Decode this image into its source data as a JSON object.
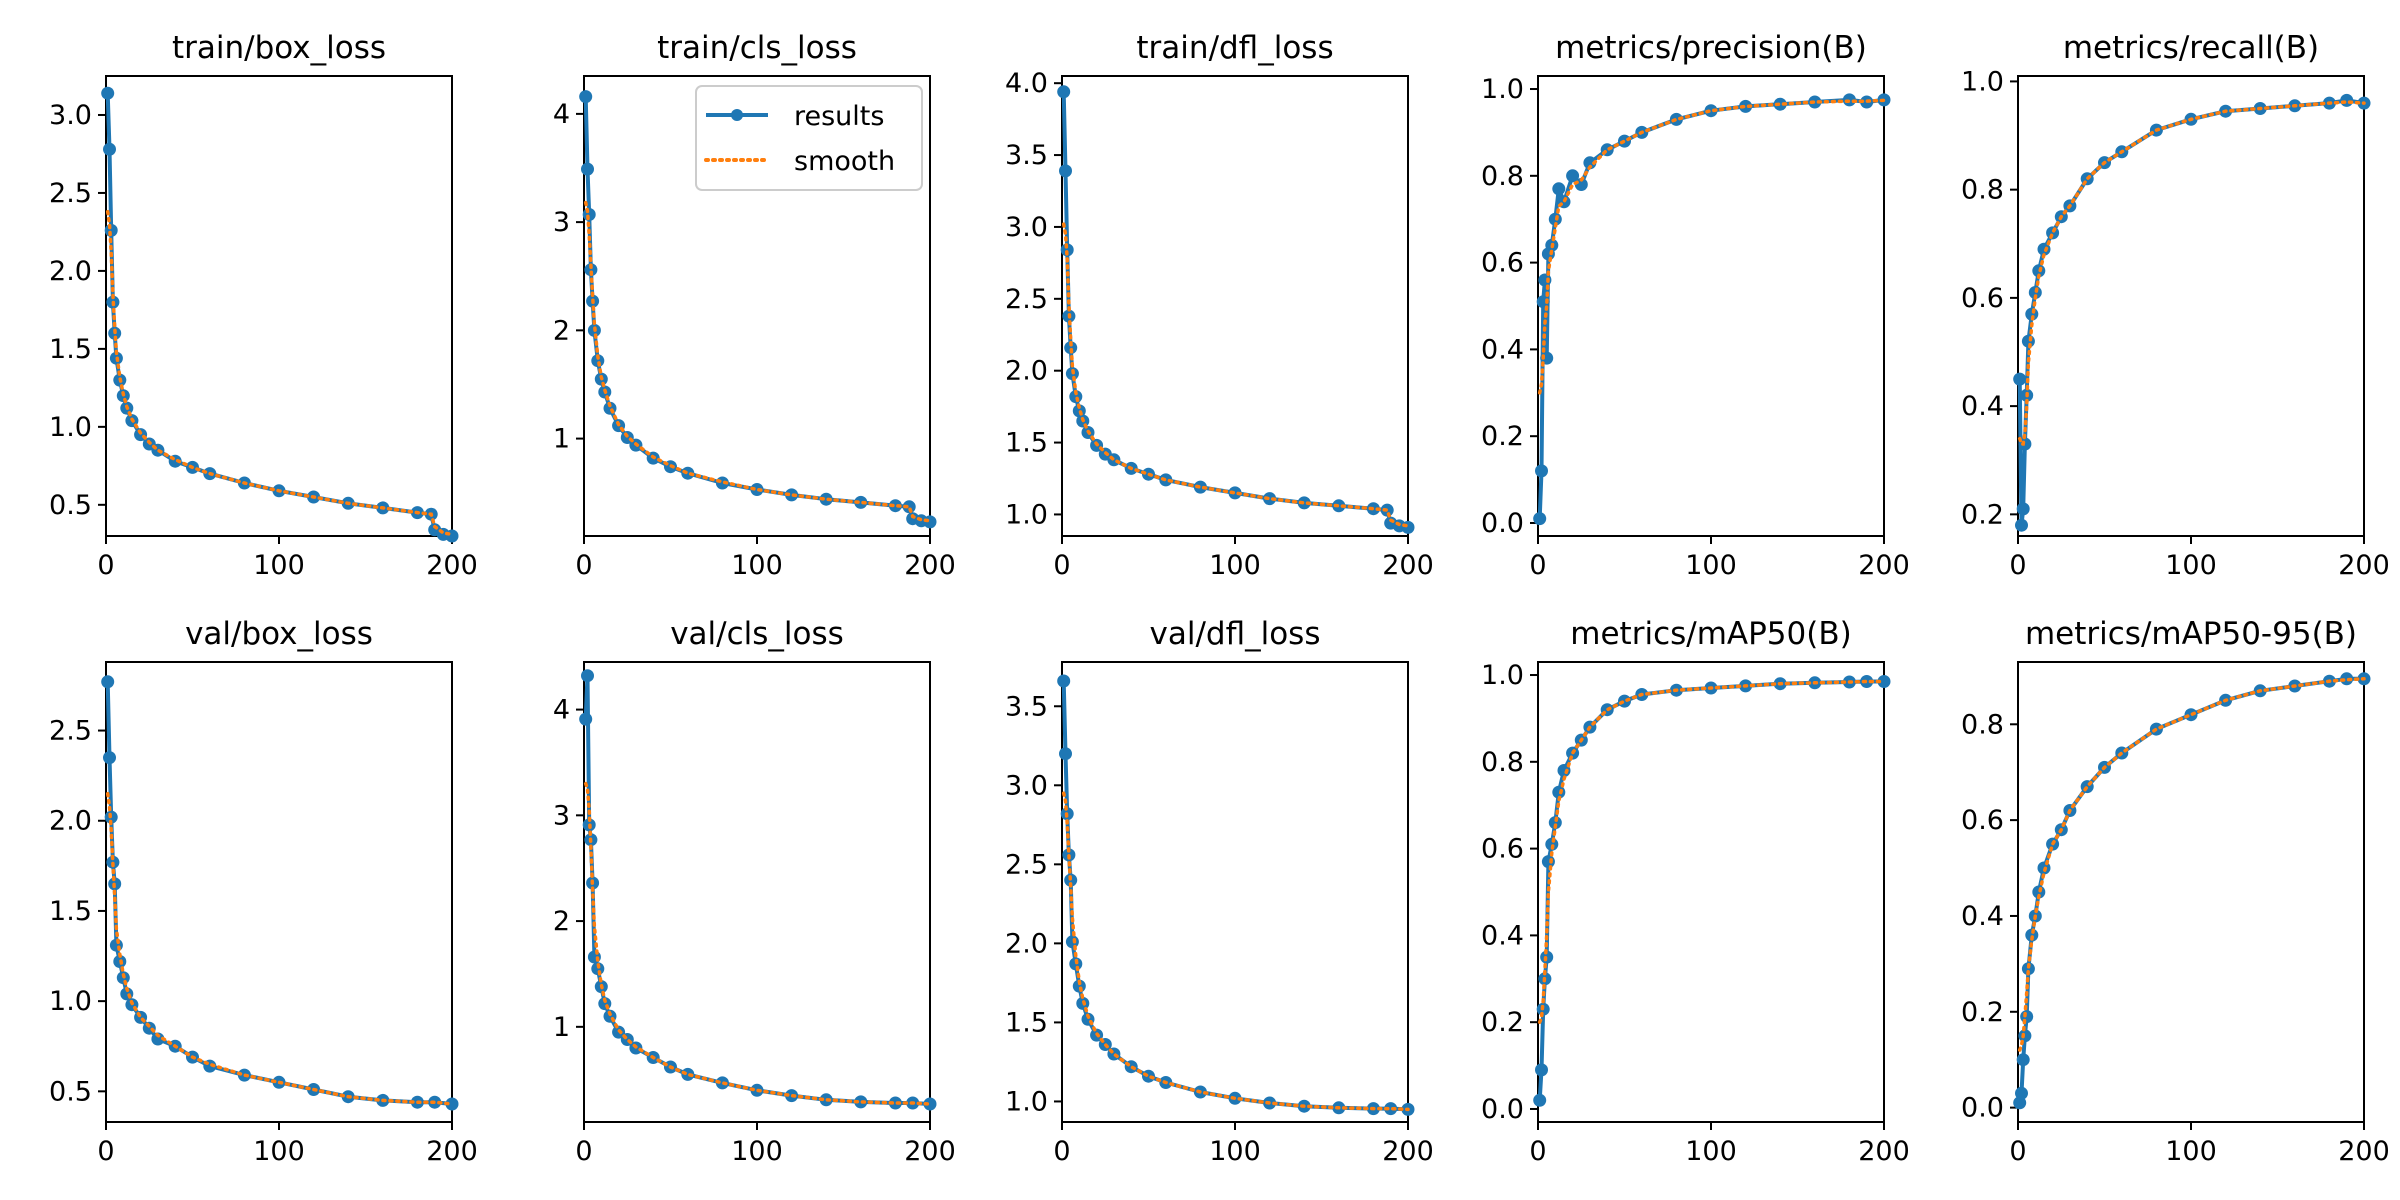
{
  "colors": {
    "results": "#1f77b4",
    "smooth": "#ff7f0e"
  },
  "legend": {
    "results_label": "results",
    "smooth_label": "smooth",
    "location": "upper right of train/cls_loss panel"
  },
  "chart_data": [
    {
      "type": "line",
      "title": "train/box_loss",
      "xlim": [
        0,
        200
      ],
      "ylim": [
        0.3,
        3.25
      ],
      "xticks": [
        0,
        100,
        200
      ],
      "yticks": [
        0.5,
        1.0,
        1.5,
        2.0,
        2.5,
        3.0
      ],
      "x": [
        1,
        2,
        3,
        4,
        5,
        6,
        8,
        10,
        12,
        15,
        20,
        25,
        30,
        40,
        50,
        60,
        80,
        100,
        120,
        140,
        160,
        180,
        188,
        190,
        195,
        200
      ],
      "results": [
        3.14,
        2.78,
        2.26,
        1.8,
        1.6,
        1.44,
        1.3,
        1.2,
        1.12,
        1.04,
        0.95,
        0.89,
        0.85,
        0.78,
        0.74,
        0.7,
        0.64,
        0.59,
        0.55,
        0.51,
        0.48,
        0.45,
        0.44,
        0.34,
        0.31,
        0.3
      ],
      "smooth": [
        2.38,
        2.3,
        2.12,
        1.85,
        1.64,
        1.48,
        1.32,
        1.21,
        1.13,
        1.05,
        0.96,
        0.9,
        0.85,
        0.79,
        0.74,
        0.7,
        0.64,
        0.59,
        0.55,
        0.51,
        0.48,
        0.45,
        0.44,
        0.36,
        0.32,
        0.31
      ]
    },
    {
      "type": "line",
      "title": "train/cls_loss",
      "xlim": [
        0,
        200
      ],
      "ylim": [
        0.1,
        4.35
      ],
      "xticks": [
        0,
        100,
        200
      ],
      "yticks": [
        1,
        2,
        3,
        4
      ],
      "x": [
        1,
        2,
        3,
        4,
        5,
        6,
        8,
        10,
        12,
        15,
        20,
        25,
        30,
        40,
        50,
        60,
        80,
        100,
        120,
        140,
        160,
        180,
        188,
        190,
        195,
        200
      ],
      "results": [
        4.16,
        3.49,
        3.07,
        2.56,
        2.27,
        2.0,
        1.72,
        1.55,
        1.43,
        1.28,
        1.12,
        1.01,
        0.94,
        0.82,
        0.74,
        0.68,
        0.59,
        0.53,
        0.48,
        0.44,
        0.41,
        0.38,
        0.37,
        0.26,
        0.24,
        0.23
      ],
      "smooth": [
        3.18,
        3.1,
        2.88,
        2.6,
        2.32,
        2.06,
        1.76,
        1.57,
        1.45,
        1.3,
        1.13,
        1.02,
        0.95,
        0.83,
        0.75,
        0.68,
        0.6,
        0.53,
        0.48,
        0.44,
        0.41,
        0.38,
        0.37,
        0.28,
        0.25,
        0.24
      ]
    },
    {
      "type": "line",
      "title": "train/dfl_loss",
      "xlim": [
        0,
        200
      ],
      "ylim": [
        0.85,
        4.05
      ],
      "xticks": [
        0,
        100,
        200
      ],
      "yticks": [
        1.0,
        1.5,
        2.0,
        2.5,
        3.0,
        3.5,
        4.0
      ],
      "x": [
        1,
        2,
        3,
        4,
        5,
        6,
        8,
        10,
        12,
        15,
        20,
        25,
        30,
        40,
        50,
        60,
        80,
        100,
        120,
        140,
        160,
        180,
        188,
        190,
        195,
        200
      ],
      "results": [
        3.94,
        3.39,
        2.84,
        2.38,
        2.16,
        1.98,
        1.82,
        1.72,
        1.65,
        1.57,
        1.48,
        1.42,
        1.38,
        1.32,
        1.28,
        1.24,
        1.19,
        1.15,
        1.11,
        1.08,
        1.06,
        1.04,
        1.03,
        0.94,
        0.92,
        0.91
      ],
      "smooth": [
        3.02,
        2.95,
        2.78,
        2.46,
        2.22,
        2.03,
        1.85,
        1.74,
        1.66,
        1.58,
        1.49,
        1.43,
        1.38,
        1.32,
        1.28,
        1.24,
        1.19,
        1.15,
        1.11,
        1.08,
        1.06,
        1.04,
        1.03,
        0.96,
        0.93,
        0.92
      ]
    },
    {
      "type": "line",
      "title": "metrics/precision(B)",
      "xlim": [
        0,
        200
      ],
      "ylim": [
        -0.03,
        1.03
      ],
      "xticks": [
        0,
        100,
        200
      ],
      "yticks": [
        0.0,
        0.2,
        0.4,
        0.6,
        0.8,
        1.0
      ],
      "x": [
        1,
        2,
        3,
        4,
        5,
        6,
        8,
        10,
        12,
        15,
        20,
        25,
        30,
        40,
        50,
        60,
        80,
        100,
        120,
        140,
        160,
        180,
        190,
        200
      ],
      "results": [
        0.01,
        0.12,
        0.51,
        0.56,
        0.38,
        0.62,
        0.64,
        0.7,
        0.77,
        0.74,
        0.8,
        0.78,
        0.83,
        0.86,
        0.88,
        0.9,
        0.93,
        0.95,
        0.96,
        0.965,
        0.97,
        0.975,
        0.97,
        0.975
      ],
      "smooth": [
        0.3,
        0.32,
        0.38,
        0.46,
        0.5,
        0.58,
        0.63,
        0.68,
        0.73,
        0.74,
        0.78,
        0.79,
        0.82,
        0.86,
        0.88,
        0.9,
        0.93,
        0.95,
        0.96,
        0.965,
        0.97,
        0.972,
        0.972,
        0.974
      ]
    },
    {
      "type": "line",
      "title": "metrics/recall(B)",
      "xlim": [
        0,
        200
      ],
      "ylim": [
        0.16,
        1.01
      ],
      "xticks": [
        0,
        100,
        200
      ],
      "yticks": [
        0.2,
        0.4,
        0.6,
        0.8,
        1.0
      ],
      "x": [
        1,
        2,
        3,
        4,
        5,
        6,
        8,
        10,
        12,
        15,
        20,
        25,
        30,
        40,
        50,
        60,
        80,
        100,
        120,
        140,
        160,
        180,
        190,
        200
      ],
      "results": [
        0.45,
        0.18,
        0.21,
        0.33,
        0.42,
        0.52,
        0.57,
        0.61,
        0.65,
        0.69,
        0.72,
        0.75,
        0.77,
        0.82,
        0.85,
        0.87,
        0.91,
        0.93,
        0.945,
        0.95,
        0.955,
        0.96,
        0.965,
        0.96
      ],
      "smooth": [
        0.34,
        0.33,
        0.33,
        0.35,
        0.4,
        0.48,
        0.55,
        0.6,
        0.64,
        0.68,
        0.72,
        0.75,
        0.77,
        0.82,
        0.85,
        0.87,
        0.91,
        0.93,
        0.945,
        0.95,
        0.955,
        0.96,
        0.962,
        0.96
      ]
    },
    {
      "type": "line",
      "title": "val/box_loss",
      "xlim": [
        0,
        200
      ],
      "ylim": [
        0.33,
        2.88
      ],
      "xticks": [
        0,
        100,
        200
      ],
      "yticks": [
        0.5,
        1.0,
        1.5,
        2.0,
        2.5
      ],
      "x": [
        1,
        2,
        3,
        4,
        5,
        6,
        8,
        10,
        12,
        15,
        20,
        25,
        30,
        40,
        50,
        60,
        80,
        100,
        120,
        140,
        160,
        180,
        190,
        200
      ],
      "results": [
        2.77,
        2.35,
        2.02,
        1.77,
        1.65,
        1.31,
        1.22,
        1.13,
        1.04,
        0.98,
        0.91,
        0.85,
        0.79,
        0.75,
        0.69,
        0.64,
        0.59,
        0.55,
        0.51,
        0.47,
        0.45,
        0.44,
        0.44,
        0.43
      ],
      "smooth": [
        2.15,
        2.08,
        1.95,
        1.76,
        1.58,
        1.4,
        1.26,
        1.15,
        1.07,
        0.99,
        0.91,
        0.86,
        0.81,
        0.75,
        0.69,
        0.65,
        0.59,
        0.55,
        0.51,
        0.47,
        0.45,
        0.44,
        0.44,
        0.43
      ]
    },
    {
      "type": "line",
      "title": "val/cls_loss",
      "xlim": [
        0,
        200
      ],
      "ylim": [
        0.1,
        4.45
      ],
      "xticks": [
        0,
        100,
        200
      ],
      "yticks": [
        1,
        2,
        3,
        4
      ],
      "x": [
        1,
        2,
        3,
        4,
        5,
        6,
        8,
        10,
        12,
        15,
        20,
        25,
        30,
        40,
        50,
        60,
        80,
        100,
        120,
        140,
        160,
        180,
        190,
        200
      ],
      "results": [
        3.91,
        4.32,
        2.91,
        2.77,
        2.36,
        1.66,
        1.55,
        1.38,
        1.22,
        1.1,
        0.95,
        0.88,
        0.8,
        0.71,
        0.62,
        0.55,
        0.47,
        0.4,
        0.35,
        0.31,
        0.29,
        0.28,
        0.28,
        0.27
      ],
      "smooth": [
        3.3,
        3.25,
        3.05,
        2.7,
        2.3,
        1.95,
        1.62,
        1.4,
        1.25,
        1.12,
        0.97,
        0.88,
        0.81,
        0.71,
        0.62,
        0.55,
        0.47,
        0.4,
        0.35,
        0.31,
        0.29,
        0.28,
        0.28,
        0.27
      ]
    },
    {
      "type": "line",
      "title": "val/dfl_loss",
      "xlim": [
        0,
        200
      ],
      "ylim": [
        0.87,
        3.78
      ],
      "xticks": [
        0,
        100,
        200
      ],
      "yticks": [
        1.0,
        1.5,
        2.0,
        2.5,
        3.0,
        3.5
      ],
      "x": [
        1,
        2,
        3,
        4,
        5,
        6,
        8,
        10,
        12,
        15,
        20,
        25,
        30,
        40,
        50,
        60,
        80,
        100,
        120,
        140,
        160,
        180,
        190,
        200
      ],
      "results": [
        3.66,
        3.2,
        2.82,
        2.56,
        2.4,
        2.01,
        1.87,
        1.73,
        1.62,
        1.52,
        1.42,
        1.36,
        1.3,
        1.22,
        1.16,
        1.12,
        1.06,
        1.02,
        0.99,
        0.97,
        0.96,
        0.955,
        0.955,
        0.95
      ],
      "smooth": [
        2.95,
        2.9,
        2.76,
        2.56,
        2.36,
        2.16,
        1.92,
        1.76,
        1.65,
        1.54,
        1.43,
        1.36,
        1.3,
        1.22,
        1.16,
        1.12,
        1.06,
        1.02,
        0.99,
        0.97,
        0.96,
        0.955,
        0.955,
        0.95
      ]
    },
    {
      "type": "line",
      "title": "metrics/mAP50(B)",
      "xlim": [
        0,
        200
      ],
      "ylim": [
        -0.03,
        1.03
      ],
      "xticks": [
        0,
        100,
        200
      ],
      "yticks": [
        0.0,
        0.2,
        0.4,
        0.6,
        0.8,
        1.0
      ],
      "x": [
        1,
        2,
        3,
        4,
        5,
        6,
        8,
        10,
        12,
        15,
        20,
        25,
        30,
        40,
        50,
        60,
        80,
        100,
        120,
        140,
        160,
        180,
        190,
        200
      ],
      "results": [
        0.02,
        0.09,
        0.23,
        0.3,
        0.35,
        0.57,
        0.61,
        0.66,
        0.73,
        0.78,
        0.82,
        0.85,
        0.88,
        0.92,
        0.94,
        0.955,
        0.965,
        0.97,
        0.975,
        0.98,
        0.982,
        0.984,
        0.985,
        0.985
      ],
      "smooth": [
        0.2,
        0.21,
        0.25,
        0.32,
        0.4,
        0.5,
        0.59,
        0.65,
        0.71,
        0.76,
        0.82,
        0.85,
        0.88,
        0.92,
        0.94,
        0.955,
        0.965,
        0.97,
        0.975,
        0.98,
        0.982,
        0.984,
        0.985,
        0.985
      ]
    },
    {
      "type": "line",
      "title": "metrics/mAP50-95(B)",
      "xlim": [
        0,
        200
      ],
      "ylim": [
        -0.03,
        0.93
      ],
      "xticks": [
        0,
        100,
        200
      ],
      "yticks": [
        0.0,
        0.2,
        0.4,
        0.6,
        0.8
      ],
      "x": [
        1,
        2,
        3,
        4,
        5,
        6,
        8,
        10,
        12,
        15,
        20,
        25,
        30,
        40,
        50,
        60,
        80,
        100,
        120,
        140,
        160,
        180,
        190,
        200
      ],
      "results": [
        0.01,
        0.03,
        0.1,
        0.15,
        0.19,
        0.29,
        0.36,
        0.4,
        0.45,
        0.5,
        0.55,
        0.58,
        0.62,
        0.67,
        0.71,
        0.74,
        0.79,
        0.82,
        0.85,
        0.87,
        0.88,
        0.89,
        0.895,
        0.895
      ],
      "smooth": [
        0.12,
        0.13,
        0.15,
        0.19,
        0.24,
        0.29,
        0.35,
        0.4,
        0.44,
        0.49,
        0.55,
        0.58,
        0.62,
        0.67,
        0.71,
        0.74,
        0.79,
        0.82,
        0.85,
        0.87,
        0.88,
        0.89,
        0.893,
        0.895
      ]
    }
  ]
}
